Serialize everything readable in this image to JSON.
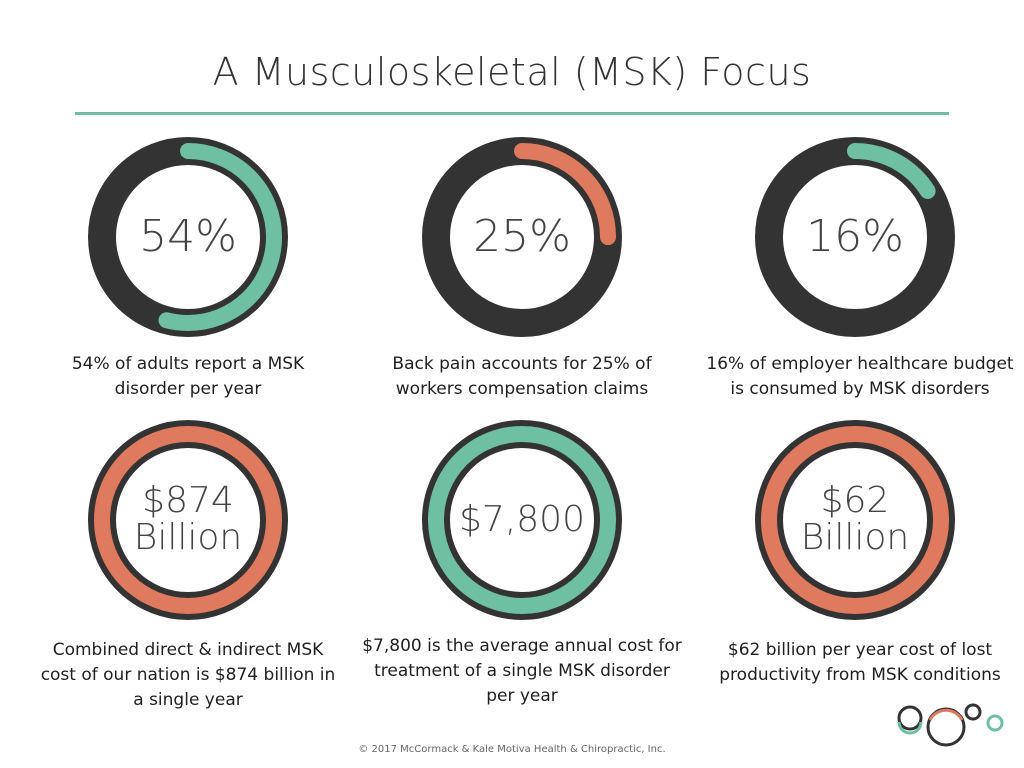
{
  "title": "A Musculoskeletal (MSK) Focus",
  "colors": {
    "dark": "#333333",
    "teal": "#6fbfa2",
    "coral": "#e07a5f"
  },
  "stats": [
    {
      "value": "54%",
      "caption": "54% of adults report a MSK disorder per year",
      "progress": 0.54,
      "ring": "progress",
      "accent": "teal"
    },
    {
      "value": "25%",
      "caption": "Back pain accounts for 25% of workers compensation claims",
      "progress": 0.25,
      "ring": "progress",
      "accent": "coral"
    },
    {
      "value": "16%",
      "caption": "16% of employer healthcare budget is consumed by MSK disorders",
      "progress": 0.16,
      "ring": "progress",
      "accent": "teal"
    },
    {
      "value_line1": "$874",
      "value_line2": "Billion",
      "caption": "Combined direct & indirect MSK cost of our nation is $874 billion in a single year",
      "ring": "full",
      "accent": "coral"
    },
    {
      "value": "$7,800",
      "caption": "$7,800 is the average annual cost for treatment of a single MSK disorder per year",
      "ring": "full",
      "accent": "teal"
    },
    {
      "value_line1": "$62",
      "value_line2": "Billion",
      "caption": "$62 billion per year cost of lost productivity from MSK conditions",
      "ring": "full",
      "accent": "coral"
    }
  ],
  "footer": "© 2017 McCormack & Kale Motiva Health & Chiropractic, Inc."
}
